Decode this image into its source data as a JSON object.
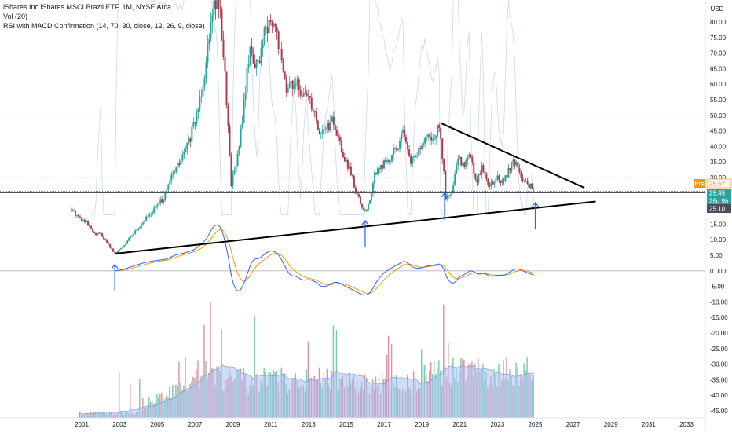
{
  "legend": {
    "title": "iShares Inc iShares MSCI Brazil ETF, 1M, NYSE Arca",
    "volume": "Vol (20)",
    "rsi": "RSI with MACD Confirmation (14, 70, 30, close, 12, 26, 9, close)"
  },
  "chart_data": {
    "type": "candlestick",
    "currency_label": "USD",
    "x_ticks": [
      "2001",
      "2003",
      "2005",
      "2007",
      "2009",
      "2011",
      "2013",
      "2015",
      "2017",
      "2019",
      "2021",
      "2023",
      "2025",
      "2027",
      "2029",
      "2031",
      "2033"
    ],
    "y_ticks": [
      "80.00",
      "75.00",
      "70.00",
      "65.00",
      "60.00",
      "55.00",
      "50.00",
      "45.00",
      "40.00",
      "35.00",
      "30.00",
      "25.00",
      "20.00",
      "15.00",
      "10.00",
      "5.00",
      "0.000",
      "-5.00",
      "-10.00",
      "-15.00",
      "-20.00",
      "-25.00",
      "-30.00",
      "-35.00",
      "-40.00",
      "-45.00"
    ],
    "ylim": [
      -47,
      84
    ],
    "rsi_levels": [
      70,
      50,
      30
    ],
    "price_series": [
      [
        2000.5,
        19.5
      ],
      [
        2000.9,
        17
      ],
      [
        2001.3,
        15
      ],
      [
        2001.7,
        11.5
      ],
      [
        2002.0,
        12
      ],
      [
        2002.4,
        8.5
      ],
      [
        2002.75,
        5.5
      ],
      [
        2003.2,
        8
      ],
      [
        2003.6,
        11
      ],
      [
        2004.0,
        14
      ],
      [
        2004.5,
        17.5
      ],
      [
        2005.0,
        21
      ],
      [
        2005.4,
        24
      ],
      [
        2005.8,
        31
      ],
      [
        2006.3,
        36
      ],
      [
        2006.7,
        42
      ],
      [
        2007.0,
        48
      ],
      [
        2007.3,
        57
      ],
      [
        2007.6,
        68
      ],
      [
        2007.85,
        84
      ],
      [
        2008.2,
        88
      ],
      [
        2008.45,
        75
      ],
      [
        2008.7,
        52
      ],
      [
        2008.9,
        28
      ],
      [
        2009.3,
        38
      ],
      [
        2009.6,
        55
      ],
      [
        2009.9,
        72
      ],
      [
        2010.3,
        65
      ],
      [
        2010.6,
        74
      ],
      [
        2010.9,
        79
      ],
      [
        2011.3,
        77
      ],
      [
        2011.6,
        66
      ],
      [
        2011.9,
        58
      ],
      [
        2012.3,
        62
      ],
      [
        2012.6,
        55
      ],
      [
        2012.9,
        58
      ],
      [
        2013.3,
        52
      ],
      [
        2013.6,
        44
      ],
      [
        2013.9,
        46
      ],
      [
        2014.3,
        48
      ],
      [
        2014.6,
        42
      ],
      [
        2014.9,
        36
      ],
      [
        2015.2,
        32
      ],
      [
        2015.6,
        24
      ],
      [
        2015.9,
        19
      ],
      [
        2016.2,
        21
      ],
      [
        2016.5,
        31
      ],
      [
        2016.9,
        34
      ],
      [
        2017.3,
        36
      ],
      [
        2017.7,
        40
      ],
      [
        2018.0,
        44
      ],
      [
        2018.4,
        35
      ],
      [
        2018.8,
        38
      ],
      [
        2019.2,
        42
      ],
      [
        2019.6,
        43
      ],
      [
        2019.9,
        46
      ],
      [
        2020.15,
        34
      ],
      [
        2020.25,
        23
      ],
      [
        2020.6,
        25
      ],
      [
        2020.9,
        36
      ],
      [
        2021.2,
        34
      ],
      [
        2021.5,
        38
      ],
      [
        2021.9,
        29
      ],
      [
        2022.2,
        34
      ],
      [
        2022.5,
        27
      ],
      [
        2022.9,
        30
      ],
      [
        2023.3,
        28
      ],
      [
        2023.6,
        33
      ],
      [
        2023.9,
        35
      ],
      [
        2024.2,
        31
      ],
      [
        2024.5,
        28
      ],
      [
        2024.8,
        27
      ],
      [
        2024.95,
        25.45
      ]
    ],
    "trendlines": [
      {
        "name": "support",
        "from": [
          2002.75,
          5.5
        ],
        "to": [
          2028.2,
          22.3
        ]
      },
      {
        "name": "resistance",
        "from": [
          2020.0,
          47.5
        ],
        "to": [
          2027.6,
          26.7
        ]
      }
    ],
    "horizontal_levels": [
      25.45,
      25.1
    ],
    "macd_zero_line": 0,
    "arrows_at": [
      2002.75,
      2016.0,
      2020.2,
      2025.0
    ],
    "price_tags": [
      {
        "label": "Pre",
        "value": "25.57",
        "color": "#f7931a"
      },
      {
        "label": "",
        "value": "25.45",
        "color": "#26a69a"
      },
      {
        "label": "",
        "value": "26d 9h",
        "color": "#26a69a"
      },
      {
        "label": "",
        "value": "25.10",
        "color": "#4a4e5a"
      }
    ]
  },
  "colors": {
    "up": "#26a69a",
    "down": "#b2374c",
    "trendline": "#000000",
    "arrow": "#2962ff",
    "macd": "#2962ff",
    "signal": "#ff9800",
    "rsi_line": "#9eb7e6",
    "volume_ma": "#a9c1f5"
  }
}
